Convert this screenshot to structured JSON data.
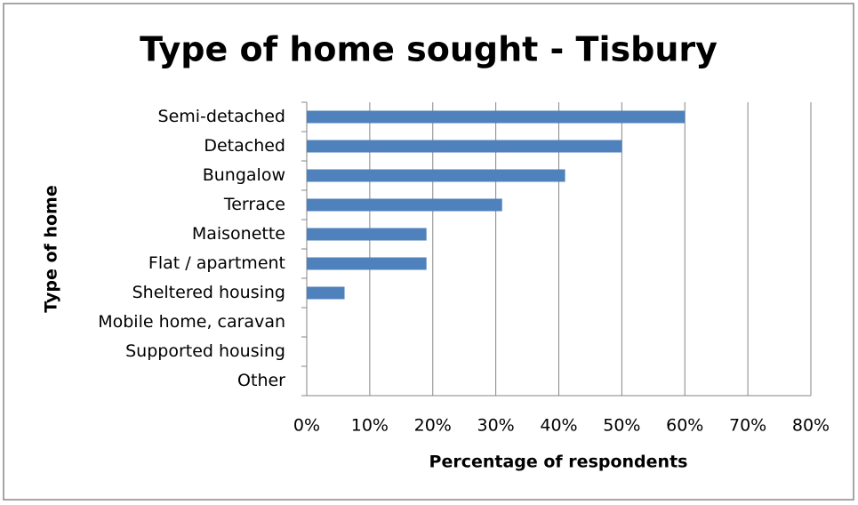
{
  "chart_data": {
    "type": "bar",
    "orientation": "horizontal",
    "title": "Type of home sought - Tisbury",
    "xlabel": "Percentage of respondents",
    "ylabel": "Type of home",
    "categories": [
      "Semi-detached",
      "Detached",
      "Bungalow",
      "Terrace",
      "Maisonette",
      "Flat / apartment",
      "Sheltered housing",
      "Mobile home, caravan",
      "Supported housing",
      "Other"
    ],
    "values": [
      60,
      50,
      41,
      31,
      19,
      19,
      6,
      0,
      0,
      0
    ],
    "color": "#4f81bd",
    "xlim": [
      0,
      80
    ],
    "xticks": [
      {
        "value": 0,
        "label": "0%"
      },
      {
        "value": 10,
        "label": "10%"
      },
      {
        "value": 20,
        "label": "20%"
      },
      {
        "value": 30,
        "label": "30%"
      },
      {
        "value": 40,
        "label": "40%"
      },
      {
        "value": 50,
        "label": "50%"
      },
      {
        "value": 60,
        "label": "60%"
      },
      {
        "value": 70,
        "label": "70%"
      },
      {
        "value": 80,
        "label": "80%"
      }
    ],
    "grid": true
  }
}
